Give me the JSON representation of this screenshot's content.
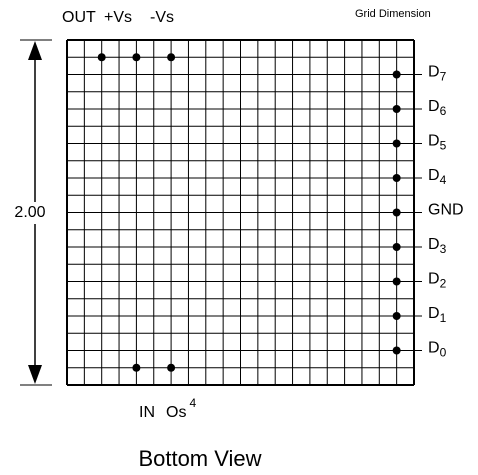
{
  "header": {
    "top_labels": [
      "OUT",
      "+Vs",
      "-Vs"
    ],
    "note": "Grid Dimension"
  },
  "dimension": "2.00",
  "right_labels": [
    {
      "base": "D",
      "sub": "7"
    },
    {
      "base": "D",
      "sub": "6"
    },
    {
      "base": "D",
      "sub": "5"
    },
    {
      "base": "D",
      "sub": "4"
    },
    {
      "base": "GND"
    },
    {
      "base": "D",
      "sub": "3"
    },
    {
      "base": "D",
      "sub": "2"
    },
    {
      "base": "D",
      "sub": "1"
    },
    {
      "base": "D",
      "sub": "0"
    }
  ],
  "bottom_labels": [
    {
      "base": "IN"
    },
    {
      "base": "Os",
      "sup": "4"
    }
  ],
  "caption": "Bottom View"
}
